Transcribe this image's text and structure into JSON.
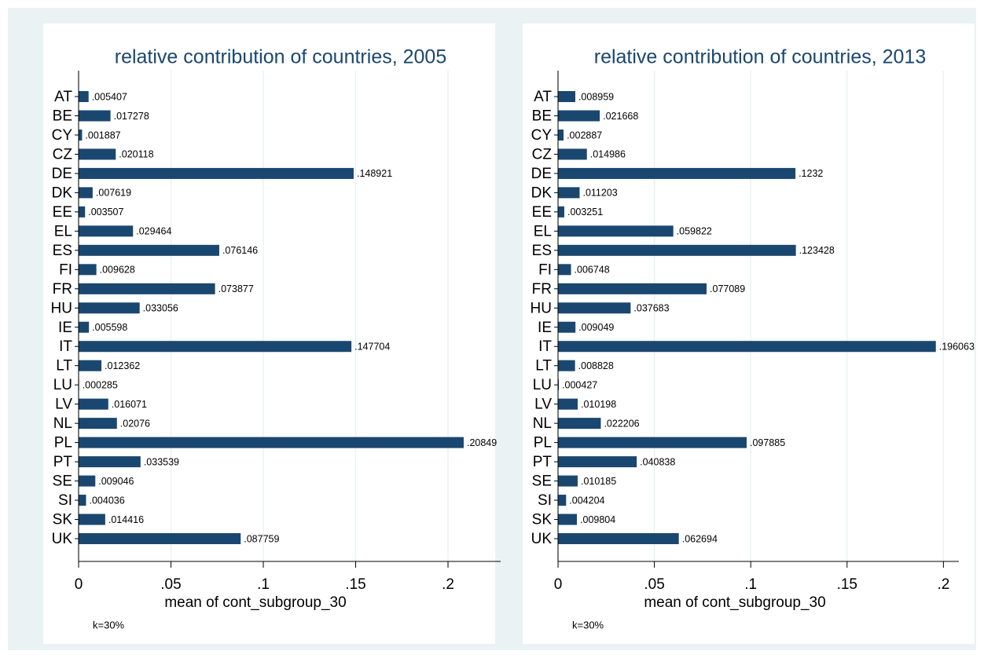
{
  "chart_data": [
    {
      "type": "bar",
      "orientation": "horizontal",
      "title": "relative contribution of countries, 2005",
      "categories": [
        "AT",
        "BE",
        "CY",
        "CZ",
        "DE",
        "DK",
        "EE",
        "EL",
        "ES",
        "FI",
        "FR",
        "HU",
        "IE",
        "IT",
        "LT",
        "LU",
        "LV",
        "NL",
        "PL",
        "PT",
        "SE",
        "SI",
        "SK",
        "UK"
      ],
      "values": [
        0.005407,
        0.017278,
        0.001887,
        0.020118,
        0.148921,
        0.007619,
        0.003507,
        0.029464,
        0.076146,
        0.009628,
        0.073877,
        0.033056,
        0.005598,
        0.147704,
        0.012362,
        0.000285,
        0.016071,
        0.02076,
        0.20849,
        0.033539,
        0.009046,
        0.004036,
        0.014416,
        0.087759
      ],
      "value_labels": [
        ".005407",
        ".017278",
        ".001887",
        ".020118",
        ".148921",
        ".007619",
        ".003507",
        ".029464",
        ".076146",
        ".009628",
        ".073877",
        ".033056",
        ".005598",
        ".147704",
        ".012362",
        ".000285",
        ".016071",
        ".02076",
        ".20849",
        ".033539",
        ".009046",
        ".004036",
        ".014416",
        ".087759"
      ],
      "xlabel": "mean of cont_subgroup_30",
      "note": "k=30%",
      "color": "#1a476f",
      "xlim": [
        0,
        0.2285
      ],
      "xticks": [
        0,
        {
          "value": 0.05,
          "label": ".05"
        },
        {
          "value": 0.1,
          "label": ".1"
        },
        {
          "value": 0.15,
          "label": ".15"
        },
        {
          "value": 0.2,
          "label": ".2"
        }
      ],
      "grid": true
    },
    {
      "type": "bar",
      "orientation": "horizontal",
      "title": "relative contribution of countries, 2013",
      "categories": [
        "AT",
        "BE",
        "CY",
        "CZ",
        "DE",
        "DK",
        "EE",
        "EL",
        "ES",
        "FI",
        "FR",
        "HU",
        "IE",
        "IT",
        "LT",
        "LU",
        "LV",
        "NL",
        "PL",
        "PT",
        "SE",
        "SI",
        "SK",
        "UK"
      ],
      "values": [
        0.008959,
        0.021668,
        0.002887,
        0.014986,
        0.1232,
        0.011203,
        0.003251,
        0.059822,
        0.123428,
        0.006748,
        0.077089,
        0.037683,
        0.009049,
        0.196063,
        0.008828,
        0.000427,
        0.010198,
        0.022206,
        0.097885,
        0.040838,
        0.010185,
        0.004204,
        0.009804,
        0.062694
      ],
      "value_labels": [
        ".008959",
        ".021668",
        ".002887",
        ".014986",
        ".1232",
        ".011203",
        ".003251",
        ".059822",
        ".123428",
        ".006748",
        ".077089",
        ".037683",
        ".009049",
        ".196063",
        ".008828",
        ".000427",
        ".010198",
        ".022206",
        ".097885",
        ".040838",
        ".010185",
        ".004204",
        ".009804",
        ".062694"
      ],
      "xlabel": "mean of cont_subgroup_30",
      "note": "k=30%",
      "color": "#1a476f",
      "xlim": [
        0,
        0.208
      ],
      "xticks": [
        0,
        {
          "value": 0.05,
          "label": ".05"
        },
        {
          "value": 0.1,
          "label": ".1"
        },
        {
          "value": 0.15,
          "label": ".15"
        },
        {
          "value": 0.2,
          "label": ".2"
        }
      ],
      "grid": true
    }
  ]
}
